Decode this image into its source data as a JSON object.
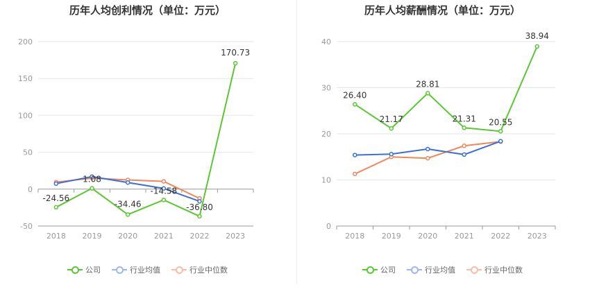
{
  "chart_data": [
    {
      "type": "line",
      "title": "历年人均创利情况（单位：万元）",
      "categories": [
        "2018",
        "2019",
        "2020",
        "2021",
        "2022",
        "2023"
      ],
      "ylim": [
        -50,
        200
      ],
      "yticks": [
        -50,
        0,
        50,
        100,
        150,
        200
      ],
      "grid": true,
      "legend_position": "bottom",
      "series": [
        {
          "name": "公司",
          "color": "#5ac732",
          "values": [
            -24.56,
            1.08,
            -34.46,
            -14.58,
            -36.8,
            170.73
          ],
          "labels": [
            "-24.56",
            "1.08",
            "-34.46",
            "-14.58",
            "-36.80",
            "170.73"
          ]
        },
        {
          "name": "行业均值",
          "color": "#3a6fd8",
          "values": [
            7.5,
            17.0,
            9.0,
            1.0,
            -16.5,
            null
          ]
        },
        {
          "name": "行业中位数",
          "color": "#f0865a",
          "values": [
            9.5,
            15.0,
            12.5,
            10.5,
            -12.5,
            null
          ]
        }
      ]
    },
    {
      "type": "line",
      "title": "历年人均薪酬情况（单位：万元）",
      "categories": [
        "2018",
        "2019",
        "2020",
        "2021",
        "2022",
        "2023"
      ],
      "ylim": [
        0,
        40
      ],
      "yticks": [
        0,
        10,
        20,
        30,
        40
      ],
      "grid": true,
      "legend_position": "bottom",
      "series": [
        {
          "name": "公司",
          "color": "#5ac732",
          "values": [
            26.4,
            21.17,
            28.81,
            21.31,
            20.55,
            38.94
          ],
          "labels": [
            "26.40",
            "21.17",
            "28.81",
            "21.31",
            "20.55",
            "38.94"
          ]
        },
        {
          "name": "行业均值",
          "color": "#3a6fd8",
          "values": [
            15.4,
            15.6,
            16.7,
            15.5,
            18.4,
            null
          ]
        },
        {
          "name": "行业中位数",
          "color": "#f0865a",
          "values": [
            11.3,
            15.0,
            14.7,
            17.4,
            18.3,
            null
          ]
        }
      ]
    }
  ]
}
